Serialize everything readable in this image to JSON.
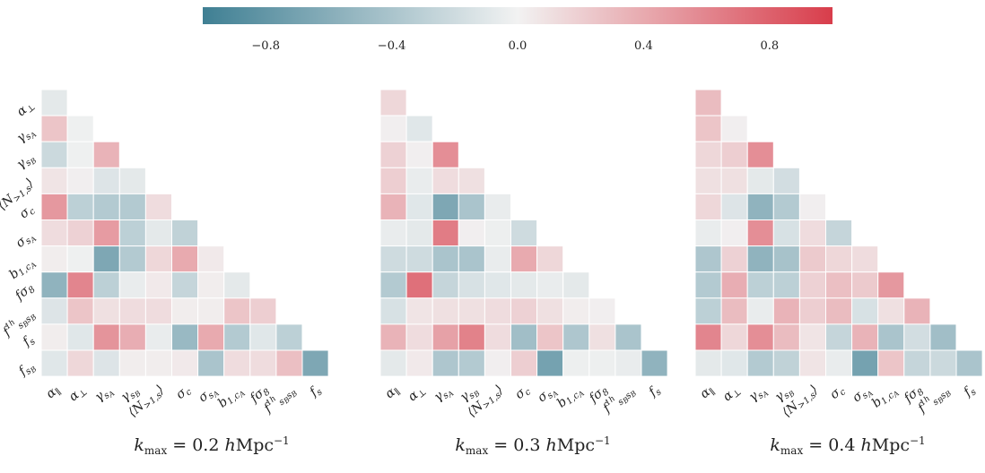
{
  "colorbar": {
    "min": -1.0,
    "max": 1.0,
    "ticks": [
      "−0.8",
      "−0.4",
      "0.0",
      "0.4",
      "0.8"
    ],
    "tick_values": [
      -0.8,
      -0.4,
      0.0,
      0.4,
      0.8
    ],
    "colors": {
      "negative": "#3f7f93",
      "zero": "#f2f2f2",
      "positive": "#d83d4b"
    }
  },
  "chart_data": [
    {
      "type": "heatmap",
      "title": "k_max = 0.2 hMpc^-1",
      "caption_parts": [
        "k",
        "max",
        " = 0.2 ",
        "h",
        "Mpc",
        "−1"
      ],
      "row_labels": [
        "α⊥",
        "γsA",
        "γsB",
        "⟨N>1,s⟩",
        "σc",
        "σsA",
        "b1,cA",
        "fσ8",
        "f1h sBsB",
        "fs",
        "fsB"
      ],
      "col_labels": [
        "α∥",
        "α⊥",
        "γsA",
        "γsB",
        "⟨N>1,s⟩",
        "σc",
        "σsA",
        "b1,cA",
        "fσ8",
        "f1h sBsB",
        "fs"
      ],
      "values": [
        [
          -0.08
        ],
        [
          0.25,
          -0.02
        ],
        [
          -0.22,
          -0.02,
          0.35
        ],
        [
          0.08,
          0.02,
          -0.12,
          -0.08
        ],
        [
          0.5,
          -0.3,
          -0.35,
          -0.35,
          0.12
        ],
        [
          0.12,
          0.18,
          0.48,
          -0.3,
          -0.08,
          -0.28
        ],
        [
          0.03,
          -0.02,
          -0.65,
          -0.35,
          0.15,
          0.4,
          0.05
        ],
        [
          -0.55,
          0.6,
          -0.3,
          -0.05,
          0.05,
          -0.25,
          0.03,
          -0.08
        ],
        [
          -0.12,
          0.25,
          0.1,
          0.12,
          0.12,
          0.03,
          0.03,
          0.25,
          0.2
        ],
        [
          0.03,
          -0.1,
          0.52,
          0.38,
          -0.05,
          -0.5,
          0.4,
          -0.35,
          -0.1,
          -0.3
        ],
        [
          -0.1,
          0.15,
          -0.12,
          0.03,
          0.03,
          0.05,
          -0.4,
          0.12,
          0.12,
          0.28,
          -0.65
        ]
      ]
    },
    {
      "type": "heatmap",
      "title": "k_max = 0.3 hMpc^-1",
      "caption_parts": [
        "k",
        "max",
        " = 0.3 ",
        "h",
        "Mpc",
        "−1"
      ],
      "row_labels": [
        "α⊥",
        "γsA",
        "γsB",
        "⟨N>1,s⟩",
        "σc",
        "σsA",
        "b1,cA",
        "fσ8",
        "f1h sBsB",
        "fs",
        "fsB"
      ],
      "col_labels": [
        "α∥",
        "α⊥",
        "γsA",
        "γsB",
        "⟨N>1,s⟩",
        "σc",
        "σsA",
        "b1,cA",
        "fσ8",
        "f1h sBsB",
        "fs"
      ],
      "values": [
        [
          0.15
        ],
        [
          0.02,
          -0.1
        ],
        [
          0.18,
          0.02,
          0.55
        ],
        [
          0.2,
          -0.05,
          0.12,
          0.1
        ],
        [
          0.35,
          -0.1,
          -0.65,
          -0.4,
          -0.05
        ],
        [
          -0.05,
          -0.08,
          0.65,
          0.02,
          -0.03,
          -0.2
        ],
        [
          -0.2,
          -0.2,
          -0.4,
          -0.4,
          -0.05,
          0.4,
          0.15
        ],
        [
          -0.35,
          0.72,
          -0.25,
          -0.15,
          -0.1,
          -0.08,
          -0.05,
          -0.08
        ],
        [
          -0.15,
          0.08,
          0.1,
          0.1,
          0.12,
          0.18,
          0.1,
          0.03,
          0.02
        ],
        [
          0.35,
          0.12,
          0.45,
          0.62,
          0.12,
          -0.45,
          0.25,
          -0.38,
          0.1,
          -0.4
        ],
        [
          -0.08,
          0.05,
          -0.38,
          -0.35,
          0.02,
          0.2,
          -0.7,
          -0.03,
          -0.03,
          -0.05,
          -0.55
        ]
      ]
    },
    {
      "type": "heatmap",
      "title": "k_max = 0.4 hMpc^-1",
      "caption_parts": [
        "k",
        "max",
        " = 0.4 ",
        "h",
        "Mpc",
        "−1"
      ],
      "row_labels": [
        "α⊥",
        "γsA",
        "γsB",
        "⟨N>1,s⟩",
        "σc",
        "σsA",
        "b1,cA",
        "fσ8",
        "f1h sBsB",
        "fs",
        "fsB"
      ],
      "col_labels": [
        "α∥",
        "α⊥",
        "γsA",
        "γsB",
        "⟨N>1,s⟩",
        "σc",
        "σsA",
        "b1,cA",
        "fσ8",
        "f1h sBsB",
        "fs"
      ],
      "values": [
        [
          0.3
        ],
        [
          0.25,
          0.02
        ],
        [
          0.15,
          0.2,
          0.55
        ],
        [
          0.1,
          0.1,
          -0.08,
          -0.18
        ],
        [
          0.15,
          -0.12,
          -0.55,
          -0.35,
          0.02
        ],
        [
          -0.05,
          0.02,
          0.55,
          -0.15,
          0.12,
          -0.25
        ],
        [
          -0.38,
          0.18,
          -0.55,
          -0.42,
          0.22,
          0.15,
          0.12
        ],
        [
          -0.35,
          0.38,
          -0.3,
          -0.3,
          0.18,
          0.28,
          0.22,
          0.5
        ],
        [
          -0.3,
          0.3,
          -0.05,
          0.35,
          0.2,
          0.3,
          -0.15,
          0.1,
          0.35
        ],
        [
          0.6,
          0.15,
          0.55,
          0.3,
          0.08,
          -0.25,
          0.35,
          -0.4,
          -0.18,
          -0.45
        ],
        [
          -0.08,
          -0.1,
          -0.35,
          -0.28,
          0.08,
          -0.05,
          -0.7,
          0.25,
          -0.25,
          -0.22,
          -0.4
        ]
      ]
    }
  ]
}
